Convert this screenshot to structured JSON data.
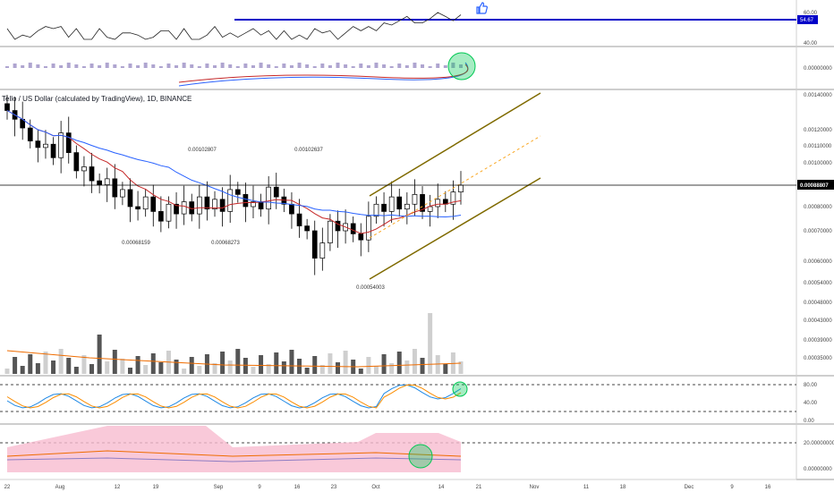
{
  "chart_data": {
    "type": "candlestick",
    "title": "Tello / US Dollar (calculated by TradingView), 1D, BINANCE",
    "price_axis": [
      "0.00140000",
      "0.00120000",
      "0.00110000",
      "0.00100000",
      "0.00088807",
      "0.00080000",
      "0.00070000",
      "0.00060000",
      "0.00054000",
      "0.00048000",
      "0.00043000",
      "0.00039000",
      "0.00035000"
    ],
    "time_axis": [
      "22",
      "Aug",
      "12",
      "19",
      "Sep",
      "9",
      "16",
      "23",
      "Oct",
      "14",
      "21",
      "Nov",
      "11",
      "18",
      "Dec",
      "9",
      "16"
    ],
    "last_price": "0.00088807",
    "price_annotations": [
      {
        "text": "0.00102807",
        "pos": "high"
      },
      {
        "text": "0.00102637",
        "pos": "high"
      },
      {
        "text": "0.00068159",
        "pos": "low"
      },
      {
        "text": "0.00068273",
        "pos": "low"
      },
      {
        "text": "0.00054003",
        "pos": "low"
      }
    ],
    "closes": [
      0.00131,
      0.00126,
      0.00121,
      0.00113,
      0.00109,
      0.00111,
      0.00103,
      0.00118,
      0.00106,
      0.00096,
      0.00098,
      0.00091,
      0.00089,
      0.00092,
      0.00084,
      0.00087,
      0.0008,
      0.00079,
      0.00084,
      0.00078,
      0.00074,
      0.00081,
      0.00077,
      0.00082,
      0.00077,
      0.00084,
      0.00079,
      0.00083,
      0.00078,
      0.00087,
      0.00085,
      0.0008,
      0.00082,
      0.00079,
      0.00088,
      0.00084,
      0.00081,
      0.00077,
      0.00072,
      0.0007,
      0.00061,
      0.00066,
      0.00074,
      0.0007,
      0.00073,
      0.00069,
      0.00067,
      0.00076,
      0.00081,
      0.00078,
      0.00084,
      0.00079,
      0.00081,
      0.00085,
      0.00078,
      0.0008,
      0.00083,
      0.00081,
      0.00086,
      0.00088807
    ],
    "rsi_panel": {
      "levels": [
        "60.00",
        "40.00"
      ],
      "value": "54.67"
    },
    "macd_panel": {
      "levels": [
        "0.00000000"
      ]
    },
    "volume_panel": {
      "ma": true
    },
    "stoch_panel": {
      "levels": [
        "80.00",
        "40.00",
        "0.00"
      ]
    },
    "bottom_panel": {
      "levels": [
        "20.00000000",
        "0.00000000"
      ]
    },
    "colors": {
      "up": "#ffffff",
      "down": "#000000",
      "ema_fast": "#c62828",
      "ema_slow": "#2962ff",
      "channel": "#7f6a00",
      "rsi_line": "#0000c8",
      "highlight": "#00c853",
      "accent": "#2962ff"
    }
  }
}
